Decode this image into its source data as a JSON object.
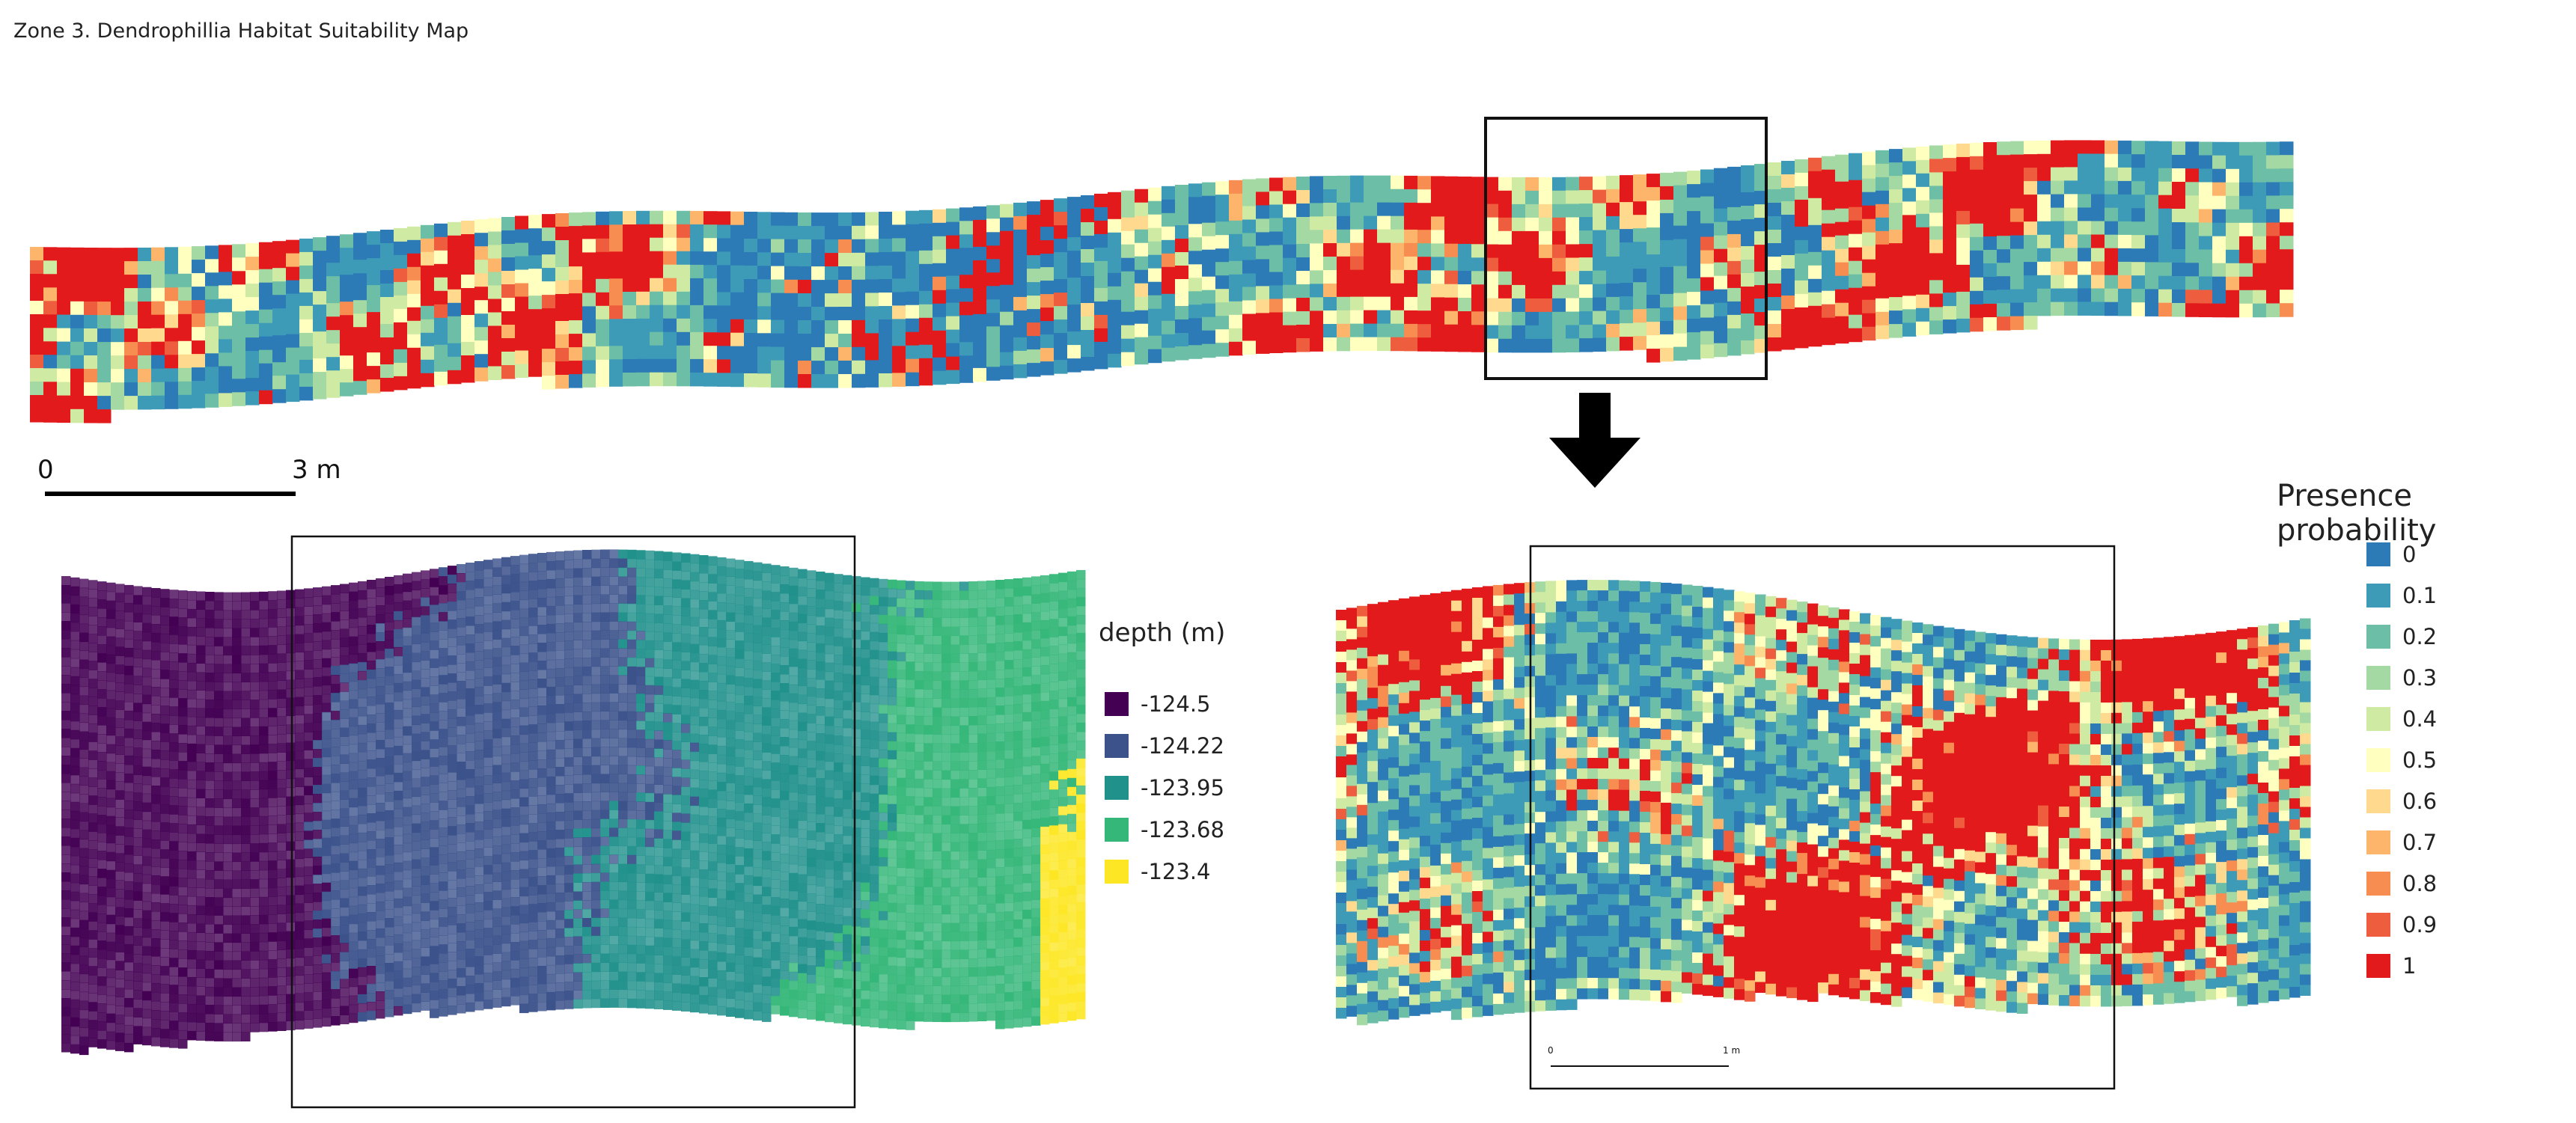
{
  "title": "Zone 3. Dendrophillia Habitat Suitability Map",
  "scalebar_main": {
    "start": "0",
    "end": "3 m"
  },
  "scalebar_zoom": {
    "start": "0",
    "end": "1 m"
  },
  "depth_legend": {
    "title": "depth (m)",
    "items": [
      {
        "label": "-124.5",
        "color": "#440154"
      },
      {
        "label": "-124.22",
        "color": "#3b528b"
      },
      {
        "label": "-123.95",
        "color": "#21918c"
      },
      {
        "label": "-123.68",
        "color": "#35b779"
      },
      {
        "label": "-123.4",
        "color": "#fde725"
      }
    ]
  },
  "presence_legend": {
    "title": "Presence probability",
    "items": [
      {
        "label": "0",
        "color": "#2c7bb6"
      },
      {
        "label": "0.1",
        "color": "#3d9bb8"
      },
      {
        "label": "0.2",
        "color": "#6cbfa6"
      },
      {
        "label": "0.3",
        "color": "#a4d9a3"
      },
      {
        "label": "0.4",
        "color": "#cfeaa3"
      },
      {
        "label": "0.5",
        "color": "#ffffbf"
      },
      {
        "label": "0.6",
        "color": "#fed98e"
      },
      {
        "label": "0.7",
        "color": "#fdb46b"
      },
      {
        "label": "0.8",
        "color": "#f88d52"
      },
      {
        "label": "0.9",
        "color": "#ee5d3d"
      },
      {
        "label": "1",
        "color": "#e31a1c"
      }
    ]
  }
}
